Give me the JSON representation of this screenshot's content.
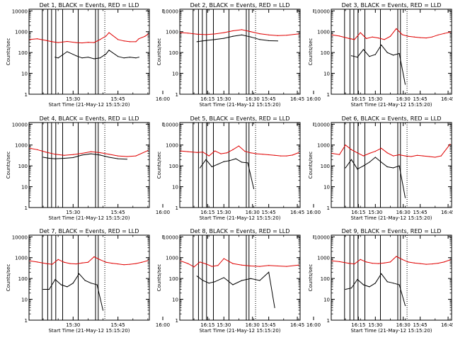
{
  "figure": {
    "panel_title_suffix": "BLACK = Events, RED = LLD",
    "xlabel": "Start Time (21-May-12 15:15:20)",
    "ylabel": "Counts/sec",
    "x_ticks": [
      "15:30",
      "15:45",
      "16:00",
      "16:15",
      "16:30",
      "16:45"
    ],
    "y_ticks": [
      "1",
      "10",
      "100",
      "1000",
      "10000"
    ],
    "colors": {
      "events": "#000000",
      "lld": "#e00000",
      "axes": "#000000"
    }
  },
  "chart_data": [
    {
      "type": "line",
      "title": "Det 1",
      "x_range_min": [
        15.25,
        55.5
      ],
      "ylim": [
        1,
        12000
      ],
      "y_scale": "log",
      "series": [
        {
          "name": "BLACK = Events",
          "x": [
            22,
            24,
            25,
            28,
            31,
            33,
            35,
            37,
            39,
            41,
            42,
            45,
            47,
            49,
            51,
            52,
            54
          ],
          "y": [
            null,
            60,
            55,
            110,
            70,
            55,
            60,
            50,
            55,
            85,
            130,
            65,
            55,
            60,
            55,
            60,
            null
          ]
        },
        {
          "name": "RED = LLD",
          "x": [
            15.5,
            18,
            21,
            23,
            25,
            28,
            31,
            33,
            35,
            37,
            39,
            41,
            42,
            45,
            47,
            49,
            51,
            52,
            54,
            55
          ],
          "y": [
            420,
            460,
            380,
            330,
            300,
            340,
            300,
            290,
            310,
            300,
            420,
            620,
            900,
            420,
            360,
            330,
            330,
            460,
            600,
            760
          ]
        }
      ],
      "vlines_solid": [
        19.7,
        21.5,
        22.8,
        24.2,
        26.5,
        31.7,
        37.5,
        38.4
      ],
      "vlines_dotted": [
        40.6
      ]
    },
    {
      "type": "line",
      "title": "Det 2",
      "x_range_min": [
        15.25,
        55.5
      ],
      "ylim": [
        1,
        12000
      ],
      "y_scale": "log",
      "series": [
        {
          "name": "BLACK = Events",
          "x": [
            21,
            24,
            27,
            30,
            33,
            36,
            39,
            42,
            45,
            48
          ],
          "y": [
            330,
            380,
            420,
            480,
            600,
            700,
            560,
            420,
            370,
            360
          ]
        },
        {
          "name": "RED = LLD",
          "x": [
            15.5,
            18,
            21,
            24,
            27,
            30,
            33,
            36,
            39,
            42,
            45,
            48,
            51,
            55
          ],
          "y": [
            900,
            850,
            760,
            720,
            780,
            900,
            1100,
            1250,
            1000,
            800,
            700,
            650,
            680,
            780
          ]
        }
      ],
      "vlines_solid": [
        19.7,
        21.5,
        22.8,
        24.2,
        26.5,
        31.7,
        37.5,
        38.4
      ],
      "vlines_dotted": [
        40.6
      ]
    },
    {
      "type": "line",
      "title": "Det 3",
      "x_range_min": [
        15.25,
        55.5
      ],
      "ylim": [
        1,
        12000
      ],
      "y_scale": "log",
      "series": [
        {
          "name": "BLACK = Events",
          "x": [
            22,
            24,
            26,
            28,
            30,
            32,
            34,
            36,
            38,
            40
          ],
          "y": [
            70,
            60,
            140,
            65,
            80,
            230,
            100,
            75,
            90,
            3
          ]
        },
        {
          "name": "RED = LLD",
          "x": [
            15.5,
            18,
            21,
            23,
            25,
            27,
            29,
            31,
            33,
            35,
            37,
            39,
            41,
            43,
            45,
            47,
            49,
            51,
            53,
            55
          ],
          "y": [
            700,
            620,
            480,
            420,
            900,
            470,
            560,
            500,
            420,
            600,
            1400,
            720,
            600,
            560,
            520,
            500,
            560,
            700,
            820,
            950
          ]
        }
      ],
      "vlines_solid": [
        19.7,
        21.5,
        22.8,
        24.2,
        26.5,
        31.7,
        37.5,
        38.4
      ],
      "vlines_dotted": [
        40.6
      ]
    },
    {
      "type": "line",
      "title": "Det 4",
      "x_range_min": [
        15.25,
        55.5
      ],
      "ylim": [
        1,
        12000
      ],
      "y_scale": "log",
      "series": [
        {
          "name": "BLACK = Events",
          "x": [
            20,
            22,
            24,
            27,
            30,
            33,
            36,
            39,
            42,
            45,
            48
          ],
          "y": [
            260,
            230,
            220,
            230,
            250,
            330,
            380,
            330,
            260,
            220,
            210
          ]
        },
        {
          "name": "RED = LLD",
          "x": [
            15.5,
            18,
            21,
            24,
            27,
            30,
            33,
            36,
            39,
            42,
            45,
            48,
            51,
            55
          ],
          "y": [
            700,
            600,
            450,
            360,
            320,
            350,
            400,
            480,
            430,
            360,
            300,
            280,
            300,
            540
          ]
        }
      ],
      "vlines_solid": [
        19.7,
        21.5,
        22.8,
        24.2,
        26.5,
        31.7,
        37.5,
        38.4
      ],
      "vlines_dotted": [
        40.6
      ]
    },
    {
      "type": "line",
      "title": "Det 5",
      "x_range_min": [
        15.25,
        55.5
      ],
      "ylim": [
        1,
        12000
      ],
      "y_scale": "log",
      "series": [
        {
          "name": "BLACK = Events",
          "x": [
            22,
            24,
            26,
            28,
            30,
            32,
            34,
            36,
            38,
            40
          ],
          "y": [
            80,
            200,
            90,
            120,
            160,
            180,
            220,
            150,
            140,
            8
          ]
        },
        {
          "name": "RED = LLD",
          "x": [
            15.5,
            18,
            21,
            23,
            25,
            27,
            29,
            31,
            33,
            35,
            37,
            39,
            41,
            43,
            45,
            47,
            49,
            51,
            53,
            55
          ],
          "y": [
            520,
            480,
            440,
            460,
            300,
            520,
            380,
            420,
            600,
            900,
            500,
            420,
            380,
            360,
            340,
            320,
            300,
            300,
            330,
            430
          ]
        }
      ],
      "vlines_solid": [
        19.7,
        21.5,
        22.8,
        24.2,
        26.5,
        31.7,
        37.5,
        38.4
      ],
      "vlines_dotted": [
        40.6
      ]
    },
    {
      "type": "line",
      "title": "Det 6",
      "x_range_min": [
        15.25,
        55.5
      ],
      "ylim": [
        1,
        12000
      ],
      "y_scale": "log",
      "series": [
        {
          "name": "BLACK = Events",
          "x": [
            20,
            22,
            24,
            26,
            28,
            30,
            32,
            34,
            36,
            38,
            40
          ],
          "y": [
            80,
            200,
            70,
            100,
            150,
            260,
            150,
            90,
            80,
            100,
            3
          ]
        },
        {
          "name": "RED = LLD",
          "x": [
            15.5,
            18,
            20,
            22,
            24,
            26,
            28,
            30,
            32,
            34,
            36,
            38,
            40,
            42,
            44,
            46,
            48,
            50,
            52,
            55
          ],
          "y": [
            400,
            350,
            1000,
            600,
            420,
            300,
            400,
            500,
            700,
            420,
            300,
            340,
            300,
            280,
            320,
            300,
            280,
            260,
            300,
            1100
          ]
        }
      ],
      "vlines_solid": [
        19.7,
        21.5,
        22.8,
        24.2,
        26.5,
        31.7,
        37.5,
        38.4
      ],
      "vlines_dotted": [
        40.6
      ]
    },
    {
      "type": "line",
      "title": "Det 7",
      "x_range_min": [
        15.25,
        55.5
      ],
      "ylim": [
        1,
        12000
      ],
      "y_scale": "log",
      "series": [
        {
          "name": "BLACK = Events",
          "x": [
            20,
            22,
            24,
            26,
            28,
            30,
            32,
            34,
            36,
            38,
            40
          ],
          "y": [
            30,
            30,
            90,
            50,
            40,
            60,
            170,
            80,
            60,
            50,
            3
          ]
        },
        {
          "name": "RED = LLD",
          "x": [
            15.5,
            18,
            21,
            23,
            25,
            27,
            29,
            31,
            33,
            35,
            37,
            39,
            41,
            43,
            45,
            47,
            49,
            51,
            53,
            55
          ],
          "y": [
            700,
            620,
            520,
            480,
            820,
            600,
            520,
            500,
            560,
            600,
            1100,
            800,
            600,
            540,
            500,
            460,
            480,
            520,
            600,
            720
          ]
        }
      ],
      "vlines_solid": [
        19.7,
        21.5,
        22.8,
        24.2,
        26.5,
        31.7,
        37.5,
        38.4
      ],
      "vlines_dotted": [
        40.6
      ]
    },
    {
      "type": "line",
      "title": "Det 8",
      "x_range_min": [
        15.25,
        55.5
      ],
      "ylim": [
        1,
        12000
      ],
      "y_scale": "log",
      "series": [
        {
          "name": "BLACK = Events",
          "x": [
            21,
            23,
            25,
            27,
            30,
            33,
            36,
            39,
            42,
            45,
            47
          ],
          "y": [
            130,
            80,
            60,
            70,
            110,
            50,
            80,
            100,
            80,
            200,
            4
          ]
        },
        {
          "name": "RED = LLD",
          "x": [
            15.5,
            18,
            20,
            22,
            24,
            26,
            28,
            30,
            33,
            36,
            39,
            42,
            45,
            48,
            51,
            55
          ],
          "y": [
            700,
            520,
            360,
            620,
            500,
            380,
            420,
            900,
            520,
            440,
            400,
            380,
            420,
            400,
            380,
            440
          ]
        }
      ],
      "vlines_solid": [
        19.7,
        21.5,
        22.8,
        24.2,
        26.5,
        31.7,
        37.5,
        38.4
      ],
      "vlines_dotted": [
        40.6
      ]
    },
    {
      "type": "line",
      "title": "Det 9",
      "x_range_min": [
        15.25,
        55.5
      ],
      "ylim": [
        1,
        12000
      ],
      "y_scale": "log",
      "series": [
        {
          "name": "BLACK = Events",
          "x": [
            20,
            22,
            24,
            26,
            28,
            30,
            32,
            34,
            36,
            38,
            40
          ],
          "y": [
            30,
            35,
            90,
            50,
            40,
            60,
            170,
            70,
            60,
            50,
            5
          ]
        },
        {
          "name": "RED = LLD",
          "x": [
            15.5,
            18,
            21,
            23,
            25,
            27,
            29,
            31,
            33,
            35,
            37,
            39,
            41,
            43,
            45,
            47,
            49,
            51,
            53,
            55
          ],
          "y": [
            700,
            640,
            540,
            500,
            820,
            620,
            540,
            520,
            560,
            620,
            1150,
            820,
            620,
            560,
            520,
            480,
            500,
            540,
            620,
            780
          ]
        }
      ],
      "vlines_solid": [
        19.7,
        21.5,
        22.8,
        24.2,
        26.5,
        31.7,
        37.5,
        38.4
      ],
      "vlines_dotted": [
        40.6
      ]
    }
  ]
}
